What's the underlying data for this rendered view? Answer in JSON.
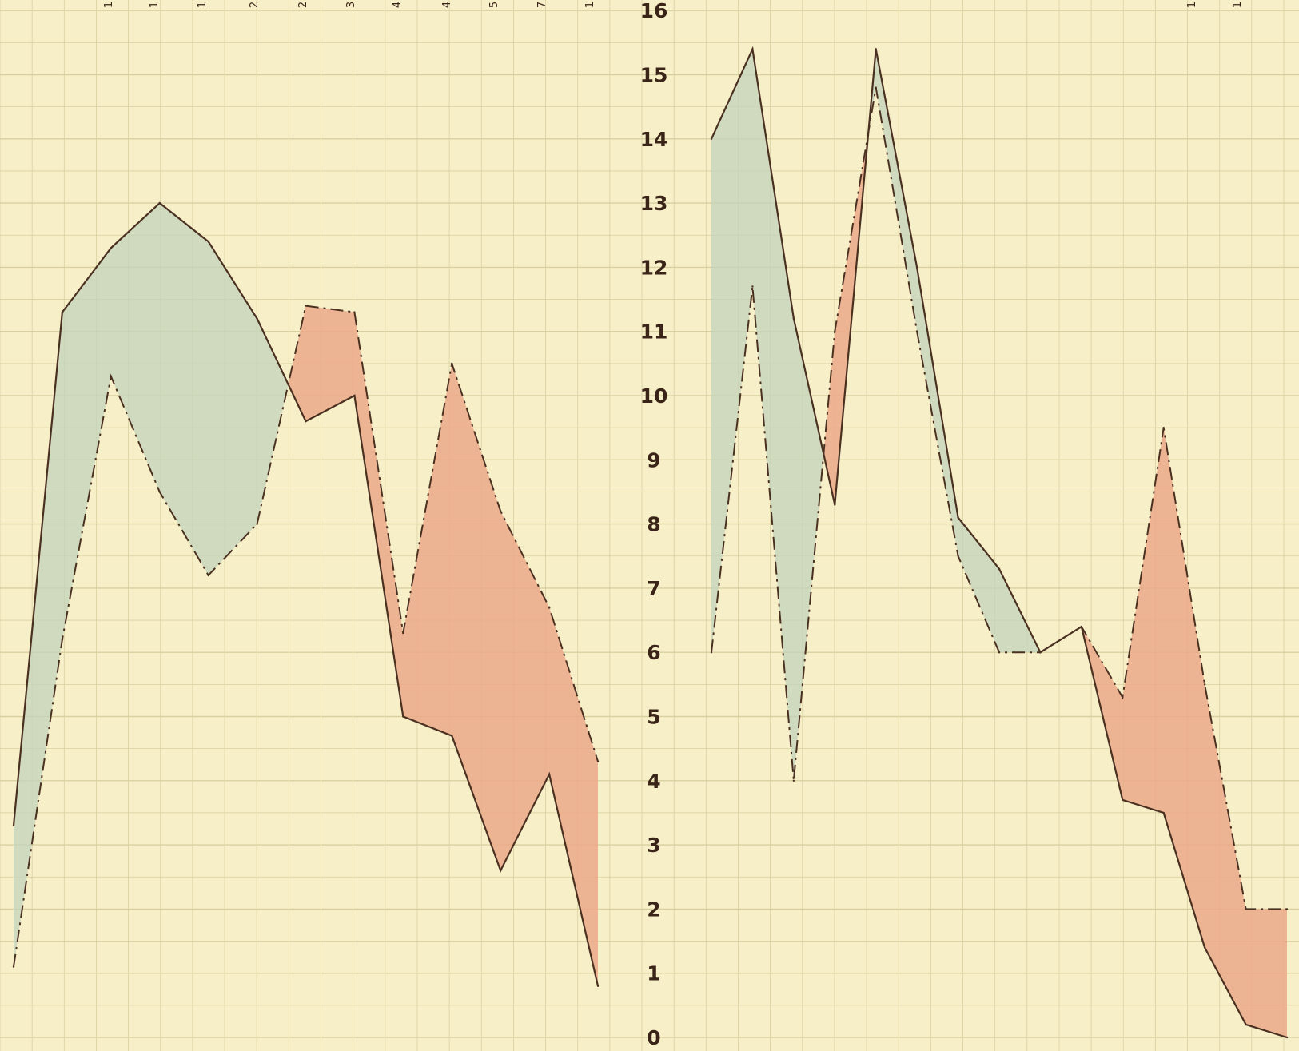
{
  "chart_data": {
    "type": "line",
    "y_axis": {
      "ticks": [
        "0",
        "1",
        "2",
        "3",
        "4",
        "5",
        "6",
        "7",
        "8",
        "9",
        "10",
        "11",
        "12",
        "13",
        "14",
        "15",
        "16"
      ],
      "ylim": [
        0,
        16.3
      ]
    },
    "grid": true,
    "colors": {
      "paper": "#f7efc8",
      "grid": "#d9d0a0",
      "line": "#4a3020",
      "fill_solid_above": "#c3d3bb",
      "fill_dashed_above": "#eba98a"
    },
    "panels": [
      {
        "id": "left",
        "top_ticks": [
          "1",
          "1",
          "1",
          "2",
          "2",
          "3",
          "4",
          "4",
          "5",
          "7",
          "1"
        ],
        "series": [
          {
            "style": "solid",
            "values": [
              3.3,
              11.3,
              12.3,
              13.0,
              12.4,
              11.2,
              9.6,
              10.0,
              5.0,
              4.7,
              2.6,
              4.1,
              0.8
            ]
          },
          {
            "style": "dashdot",
            "values": [
              1.1,
              6.2,
              10.3,
              8.5,
              7.2,
              8.0,
              11.4,
              11.3,
              6.3,
              10.5,
              8.2,
              6.7,
              4.3
            ]
          }
        ]
      },
      {
        "id": "right",
        "top_ticks": [
          "",
          "1",
          "1"
        ],
        "series": [
          {
            "style": "solid",
            "values": [
              14.0,
              15.4,
              11.2,
              8.3,
              15.4,
              12.0,
              8.1,
              7.3,
              6.0,
              6.4,
              3.7,
              3.5,
              1.4,
              0.2,
              0.0
            ]
          },
          {
            "style": "dashdot",
            "values": [
              6.0,
              11.7,
              4.0,
              11.0,
              14.8,
              11.0,
              7.5,
              6.0,
              6.0,
              6.4,
              5.3,
              9.5,
              5.5,
              2.0,
              2.0
            ]
          }
        ]
      }
    ]
  }
}
